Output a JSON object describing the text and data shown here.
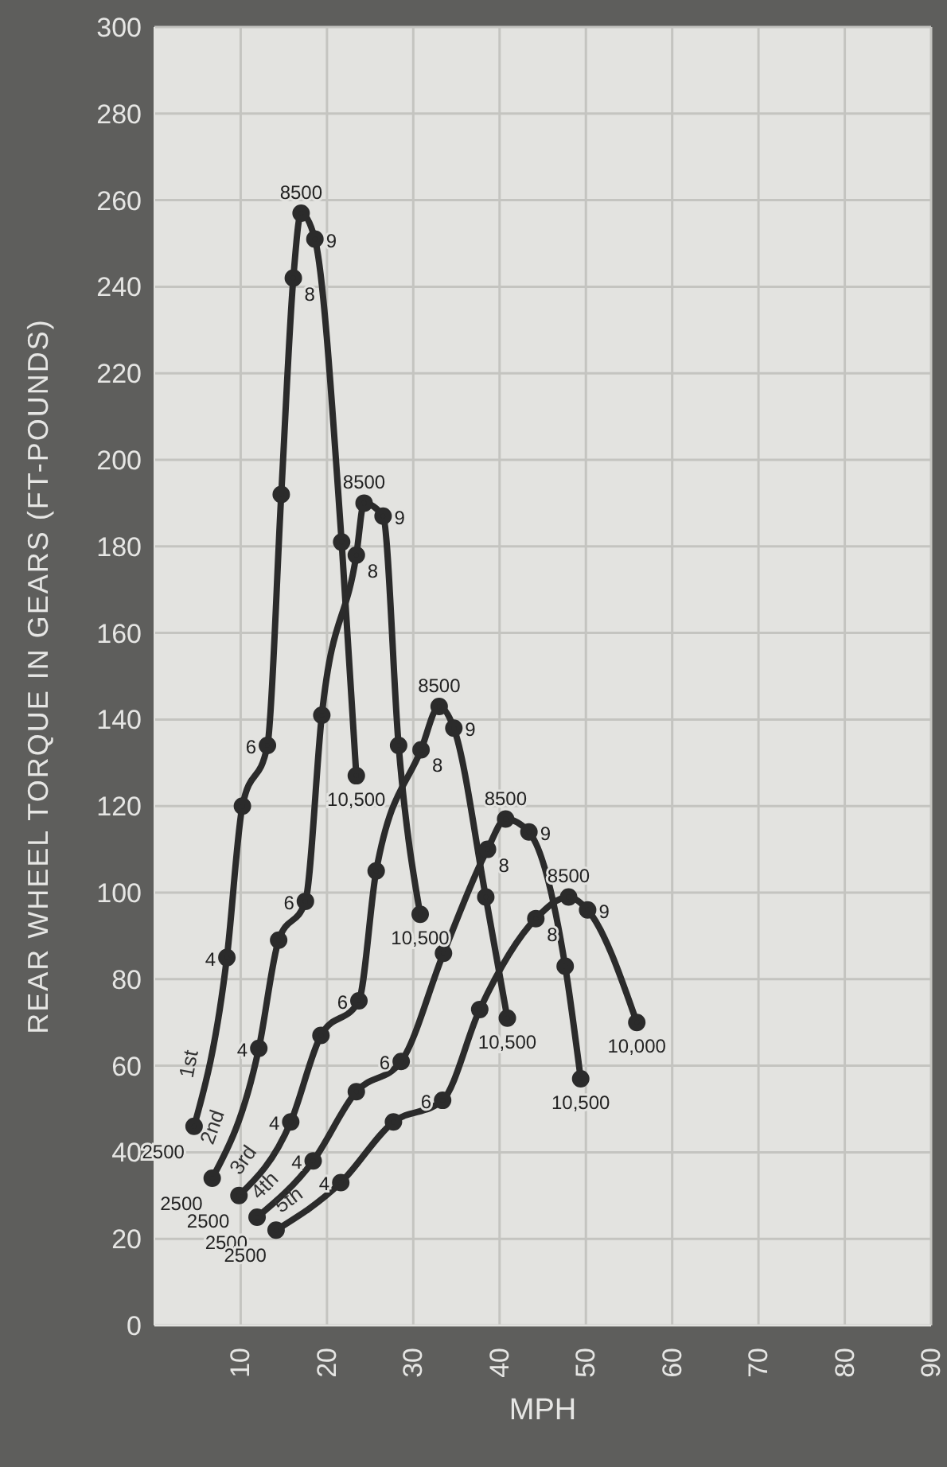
{
  "chart_data": {
    "type": "line",
    "xlabel": "MPH",
    "ylabel": "REAR WHEEL TORQUE IN GEARS (FT-POUNDS)",
    "xlim": [
      0,
      90
    ],
    "xticks": [
      10,
      20,
      30,
      40,
      50,
      60,
      70,
      80,
      90
    ],
    "ylim": [
      0,
      300
    ],
    "yticks": [
      0,
      20,
      40,
      60,
      80,
      100,
      120,
      140,
      160,
      180,
      200,
      220,
      240,
      260,
      280,
      300
    ],
    "grid": true,
    "marker": "circle",
    "legend": false,
    "series": [
      {
        "name": "1st",
        "color": "#2b2b2b",
        "x": [
          4.6,
          8.4,
          10.2,
          13.1,
          14.7,
          16.1,
          17.0,
          18.6,
          21.7,
          23.4
        ],
        "values": [
          46,
          85,
          120,
          134,
          192,
          242,
          257,
          251,
          181,
          127
        ]
      },
      {
        "name": "2nd",
        "color": "#2b2b2b",
        "x": [
          6.7,
          12.1,
          14.4,
          17.5,
          19.4,
          23.4,
          24.3,
          26.5,
          28.3,
          30.8
        ],
        "values": [
          34,
          64,
          89,
          98,
          141,
          178,
          190,
          187,
          134,
          95
        ]
      },
      {
        "name": "3rd",
        "color": "#2b2b2b",
        "x": [
          9.8,
          15.8,
          19.3,
          23.7,
          25.7,
          30.9,
          33.0,
          34.7,
          38.4,
          40.9
        ],
        "values": [
          30,
          47,
          67,
          75,
          105,
          133,
          143,
          138,
          99,
          71
        ]
      },
      {
        "name": "4th",
        "color": "#2b2b2b",
        "x": [
          11.9,
          18.4,
          23.4,
          28.6,
          33.5,
          38.6,
          40.7,
          43.4,
          47.6,
          49.4
        ],
        "values": [
          25,
          38,
          54,
          61,
          86,
          110,
          117,
          114,
          83,
          57
        ]
      },
      {
        "name": "5th",
        "color": "#2b2b2b",
        "x": [
          14.1,
          21.6,
          27.7,
          33.4,
          37.7,
          44.2,
          48.0,
          50.2,
          55.9
        ],
        "values": [
          22,
          33,
          47,
          52,
          73,
          94,
          99,
          96,
          70
        ]
      }
    ],
    "annotations": [
      {
        "text": "2500",
        "x": 4.6,
        "y": 46
      },
      {
        "text": "4",
        "x": 8.4,
        "y": 85
      },
      {
        "text": "6",
        "x": 13.1,
        "y": 134
      },
      {
        "text": "8",
        "x": 16.1,
        "y": 242
      },
      {
        "text": "8500",
        "x": 17.0,
        "y": 257
      },
      {
        "text": "9",
        "x": 18.6,
        "y": 251
      },
      {
        "text": "10,500",
        "x": 23.4,
        "y": 127
      },
      {
        "text": "2500",
        "x": 6.7,
        "y": 34
      },
      {
        "text": "4",
        "x": 12.1,
        "y": 64
      },
      {
        "text": "6",
        "x": 17.5,
        "y": 98
      },
      {
        "text": "8",
        "x": 23.4,
        "y": 178
      },
      {
        "text": "8500",
        "x": 24.3,
        "y": 190
      },
      {
        "text": "9",
        "x": 26.5,
        "y": 187
      },
      {
        "text": "10,500",
        "x": 30.8,
        "y": 95
      },
      {
        "text": "2500",
        "x": 9.8,
        "y": 30
      },
      {
        "text": "4",
        "x": 15.8,
        "y": 47
      },
      {
        "text": "6",
        "x": 23.7,
        "y": 75
      },
      {
        "text": "8",
        "x": 30.9,
        "y": 133
      },
      {
        "text": "8500",
        "x": 33.0,
        "y": 143
      },
      {
        "text": "9",
        "x": 34.7,
        "y": 138
      },
      {
        "text": "10,500",
        "x": 40.9,
        "y": 71
      },
      {
        "text": "2500",
        "x": 11.9,
        "y": 25
      },
      {
        "text": "4",
        "x": 18.4,
        "y": 38
      },
      {
        "text": "6",
        "x": 28.6,
        "y": 61
      },
      {
        "text": "8",
        "x": 38.6,
        "y": 110
      },
      {
        "text": "8500",
        "x": 40.7,
        "y": 117
      },
      {
        "text": "9",
        "x": 43.4,
        "y": 114
      },
      {
        "text": "10,500",
        "x": 49.4,
        "y": 57
      },
      {
        "text": "2500",
        "x": 14.1,
        "y": 22
      },
      {
        "text": "4",
        "x": 21.6,
        "y": 33
      },
      {
        "text": "6",
        "x": 33.4,
        "y": 52
      },
      {
        "text": "8",
        "x": 44.2,
        "y": 94
      },
      {
        "text": "8500",
        "x": 48.0,
        "y": 99
      },
      {
        "text": "9",
        "x": 50.2,
        "y": 96
      },
      {
        "text": "10,000",
        "x": 55.9,
        "y": 70
      }
    ]
  }
}
